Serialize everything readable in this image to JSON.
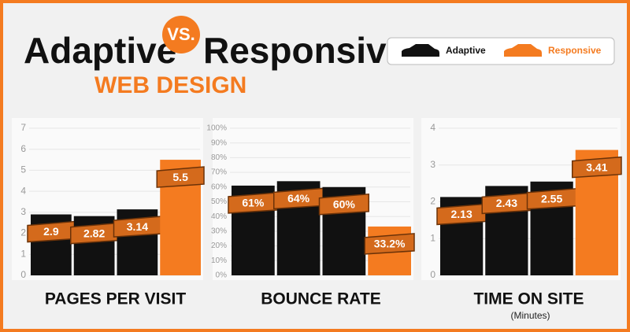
{
  "header": {
    "title_left": "Adaptive",
    "title_vs": "VS.",
    "title_right": "Responsive",
    "subtitle": "WEB DESIGN"
  },
  "legend": [
    {
      "name": "Adaptive",
      "color": "#111111"
    },
    {
      "name": "Responsive",
      "color": "#f47b20"
    }
  ],
  "chart_data": [
    {
      "type": "bar",
      "title": "PAGES PER VISIT",
      "values": [
        2.9,
        2.82,
        3.14,
        5.5
      ],
      "colors": [
        "#111111",
        "#111111",
        "#111111",
        "#f47b20"
      ],
      "ylim": [
        0,
        7
      ],
      "yticks": [
        0,
        1,
        2,
        3,
        4,
        5,
        6,
        7
      ],
      "grid": true
    },
    {
      "type": "bar",
      "title": "BOUNCE RATE",
      "values": [
        61,
        64,
        60,
        33.2
      ],
      "value_labels": [
        "61%",
        "64%",
        "60%",
        "33.2%"
      ],
      "colors": [
        "#111111",
        "#111111",
        "#111111",
        "#f47b20"
      ],
      "ylim": [
        0,
        100
      ],
      "yticks": [
        {
          "value": 0,
          "label": "0%"
        },
        {
          "value": 10,
          "label": "10%"
        },
        {
          "value": 20,
          "label": "20%"
        },
        {
          "value": 30,
          "label": "30%"
        },
        {
          "value": 40,
          "label": "40%"
        },
        {
          "value": 50,
          "label": "50%"
        },
        {
          "value": 60,
          "label": "60%"
        },
        {
          "value": 70,
          "label": "70%"
        },
        {
          "value": 80,
          "label": "80%"
        },
        {
          "value": 90,
          "label": "90%"
        },
        {
          "value": 100,
          "label": "100%"
        }
      ],
      "grid": true
    },
    {
      "type": "bar",
      "title": "TIME ON SITE",
      "subtitle": "(Minutes)",
      "values": [
        2.13,
        2.43,
        2.55,
        3.41
      ],
      "colors": [
        "#111111",
        "#111111",
        "#111111",
        "#f47b20"
      ],
      "ylim": [
        0,
        4
      ],
      "yticks": [
        0,
        1,
        2,
        3,
        4
      ],
      "grid": true
    }
  ]
}
